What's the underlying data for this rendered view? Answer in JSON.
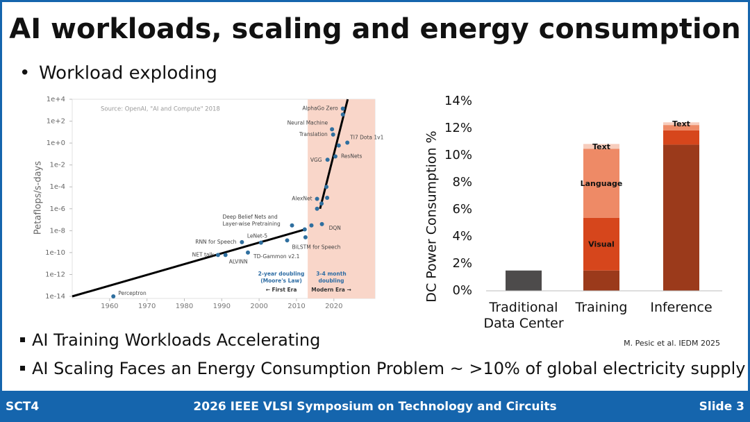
{
  "slide": {
    "title": "AI workloads, scaling and energy consumption",
    "bullet": "Workload exploding",
    "points": [
      "AI Training Workloads Accelerating",
      "AI Scaling Faces an Energy Consumption Problem ~ >10% of global electricity supply"
    ],
    "citation": "M. Pesic et al. IEDM 2025",
    "footer": {
      "left": "SCT4",
      "center": "2026 IEEE VLSI Symposium on Technology and Circuits",
      "right": "Slide 3"
    }
  },
  "chart_data": [
    {
      "type": "scatter",
      "source": "Source: OpenAI, \"AI and Compute\" 2018",
      "y_label": "Petaflops/s-days",
      "log_y": true,
      "xlim": [
        1950,
        2031
      ],
      "xticks": [
        1960,
        1970,
        1980,
        1990,
        2000,
        2010,
        2020
      ],
      "ylim": [
        1e-14,
        10000
      ],
      "yticks": [
        {
          "value": 1e-14,
          "label": "1e-14"
        },
        {
          "value": 1e-12,
          "label": "1e-12"
        },
        {
          "value": 1e-10,
          "label": "1e-10"
        },
        {
          "value": 1e-08,
          "label": "1e-8"
        },
        {
          "value": 1e-06,
          "label": "1e-6"
        },
        {
          "value": 0.0001,
          "label": "1e-4"
        },
        {
          "value": 0.01,
          "label": "1e-2"
        },
        {
          "value": 1,
          "label": "1e+0"
        },
        {
          "value": 100,
          "label": "1e+2"
        },
        {
          "value": 10000,
          "label": "1e+4"
        }
      ],
      "shaded_span": {
        "x": [
          2013,
          2031
        ],
        "color": "#f9d6c9"
      },
      "series": [
        {
          "color": "#2f6f9f",
          "x": [
            1961,
            1989,
            1991,
            1997,
            1995.4,
            2000.5,
            2007.5,
            2008.8,
            2012.2,
            2012.4,
            2014,
            2016.8,
            2015.5,
            2015.5,
            2016.7,
            2018.2,
            2018,
            2018.3,
            2020.4,
            2021.3,
            2023.6,
            2019.8,
            2019.5,
            2022.4,
            2022.4
          ],
          "values": [
            1e-14,
            6e-11,
            6e-11,
            1e-10,
            9e-10,
            8e-10,
            1.3e-09,
            3e-08,
            1.3e-08,
            2.5e-09,
            3e-08,
            4e-08,
            8e-06,
            1e-06,
            3e-06,
            1e-05,
            0.0001,
            0.03,
            0.06,
            0.6,
            1.1,
            6,
            18,
            1400,
            400
          ],
          "labels": [
            "Perceptron",
            "NET talk",
            "ALVINN",
            "TD-Gammon v2.1",
            "RNN for Speech",
            "LeNet-5",
            "BiLSTM for Speech",
            "Deep Belief Nets and Layer-wise Pretraining",
            null,
            null,
            null,
            "DQN",
            "AlexNet",
            null,
            null,
            null,
            null,
            "VGG",
            "ResNets",
            null,
            "TI7 Dota 1v1",
            "Translation",
            "Neural Machine",
            "AlphaGo Zero",
            null
          ]
        }
      ],
      "trend_lines": [
        {
          "color": "#000000",
          "x": [
            1950,
            2012.6
          ],
          "values": [
            1e-14,
            1.4e-08
          ]
        },
        {
          "color": "#000000",
          "x": [
            2016.3,
            2023.7
          ],
          "values": [
            1e-06,
            10000
          ]
        }
      ],
      "annotations": [
        "2-year doubling",
        "(Moore's Law)",
        "3-4 month",
        "doubling",
        "← First Era",
        "Modern Era →"
      ]
    },
    {
      "type": "bar",
      "stacked": true,
      "y_label": "DC Power Consumption %",
      "categories": [
        "Traditional Data Center",
        "Training",
        "Inference"
      ],
      "ylim": [
        0,
        14
      ],
      "yticks": [
        {
          "value": 0,
          "label": "0%"
        },
        {
          "value": 2,
          "label": "2%"
        },
        {
          "value": 4,
          "label": "4%"
        },
        {
          "value": 6,
          "label": "6%"
        },
        {
          "value": 8,
          "label": "8%"
        },
        {
          "value": 10,
          "label": "10%"
        },
        {
          "value": 12,
          "label": "12%"
        },
        {
          "value": 14,
          "label": "14%"
        }
      ],
      "series": [
        {
          "colors": [
            "#4d4b4b",
            "#9b3a1b",
            "#9b3a1b"
          ],
          "values": [
            1.5,
            1.5,
            10.8
          ]
        },
        {
          "name": "Visual",
          "color": "#d6461c",
          "values": [
            null,
            3.9,
            1.05
          ]
        },
        {
          "name": "Language",
          "color": "#ee8a66",
          "values": [
            null,
            5.1,
            0.4
          ]
        },
        {
          "name": "Text",
          "color": "#f7cdbd",
          "values": [
            null,
            0.35,
            0.2
          ]
        }
      ]
    }
  ]
}
